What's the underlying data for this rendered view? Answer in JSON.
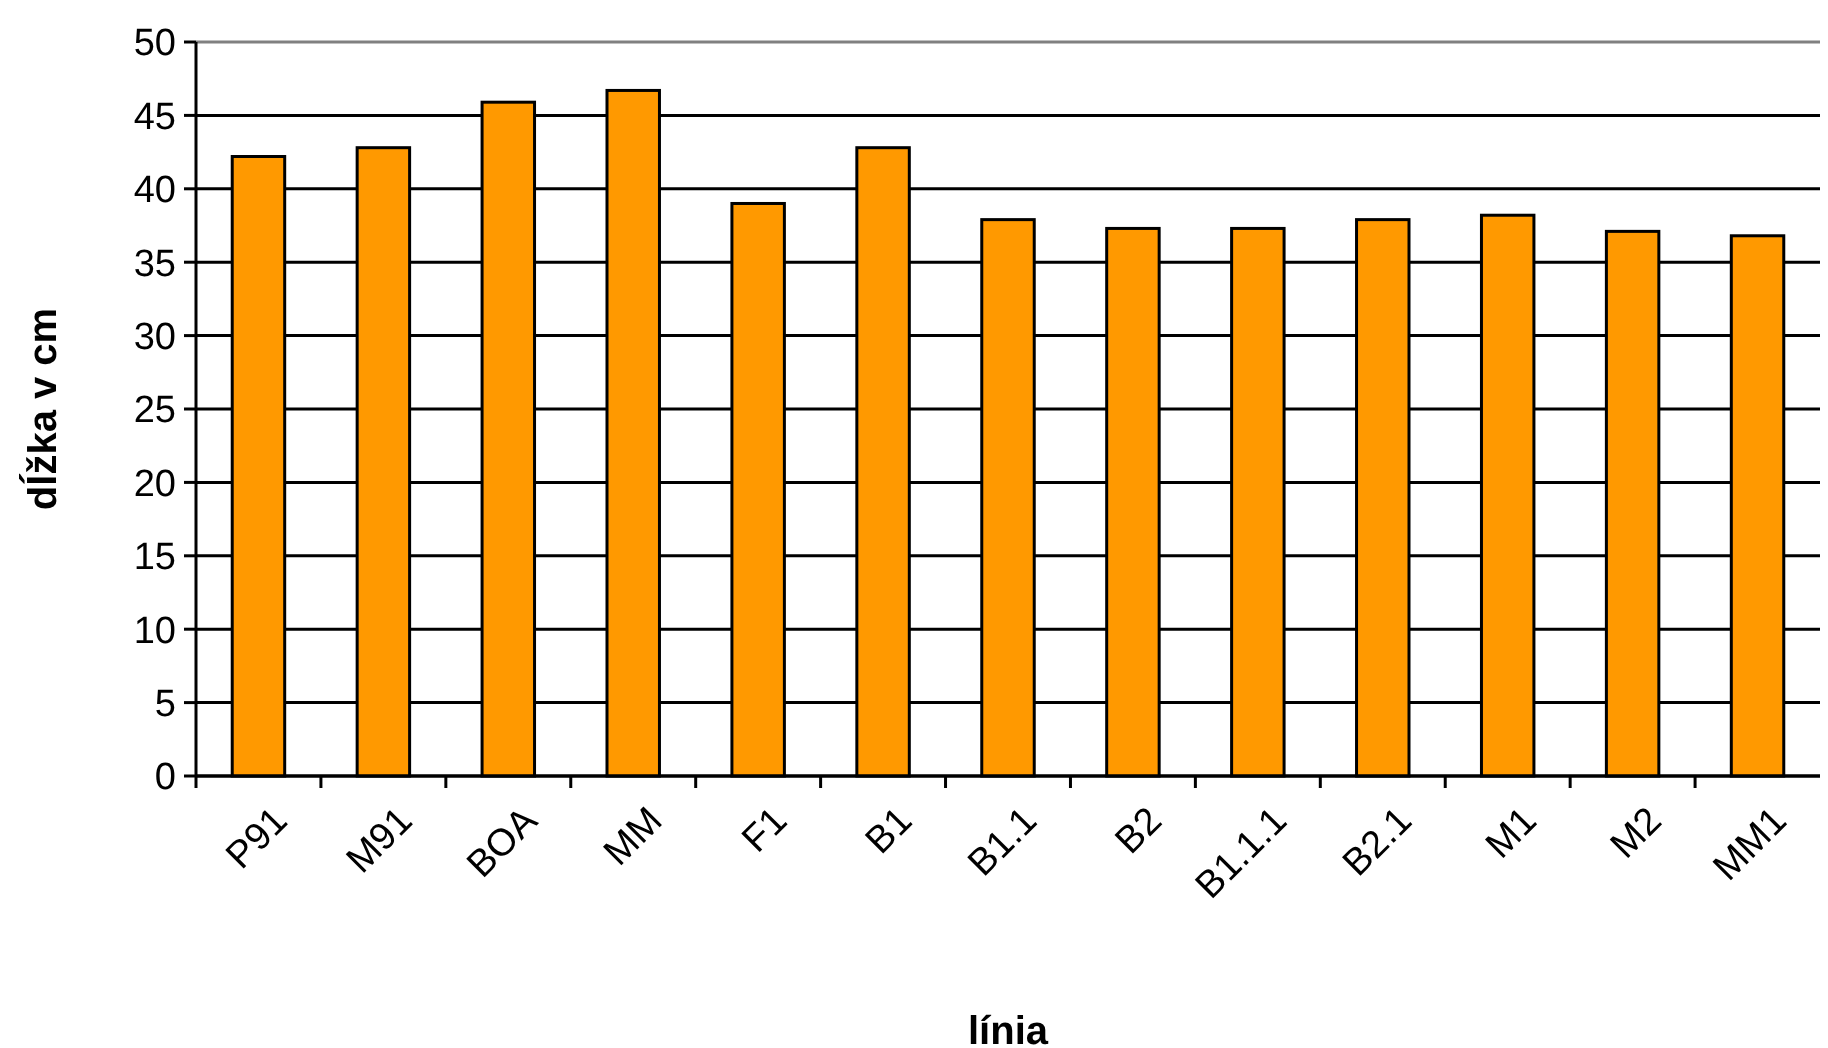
{
  "chart_data": {
    "type": "bar",
    "xlabel": "línia",
    "ylabel": "dĺžka v cm",
    "categories": [
      "P91",
      "M91",
      "BOA",
      "MM",
      "F1",
      "B1",
      "B1.1",
      "B2",
      "B1.1.1",
      "B2.1",
      "M1",
      "M2",
      "MM1"
    ],
    "values": [
      42.2,
      42.8,
      45.9,
      46.7,
      39.0,
      42.8,
      37.9,
      37.3,
      37.3,
      37.9,
      38.2,
      37.1,
      36.8
    ],
    "color": "#ff9900",
    "ylim": [
      0,
      50
    ],
    "yticks": [
      0,
      5,
      10,
      15,
      20,
      25,
      30,
      35,
      40,
      45,
      50
    ],
    "grid": "y"
  }
}
